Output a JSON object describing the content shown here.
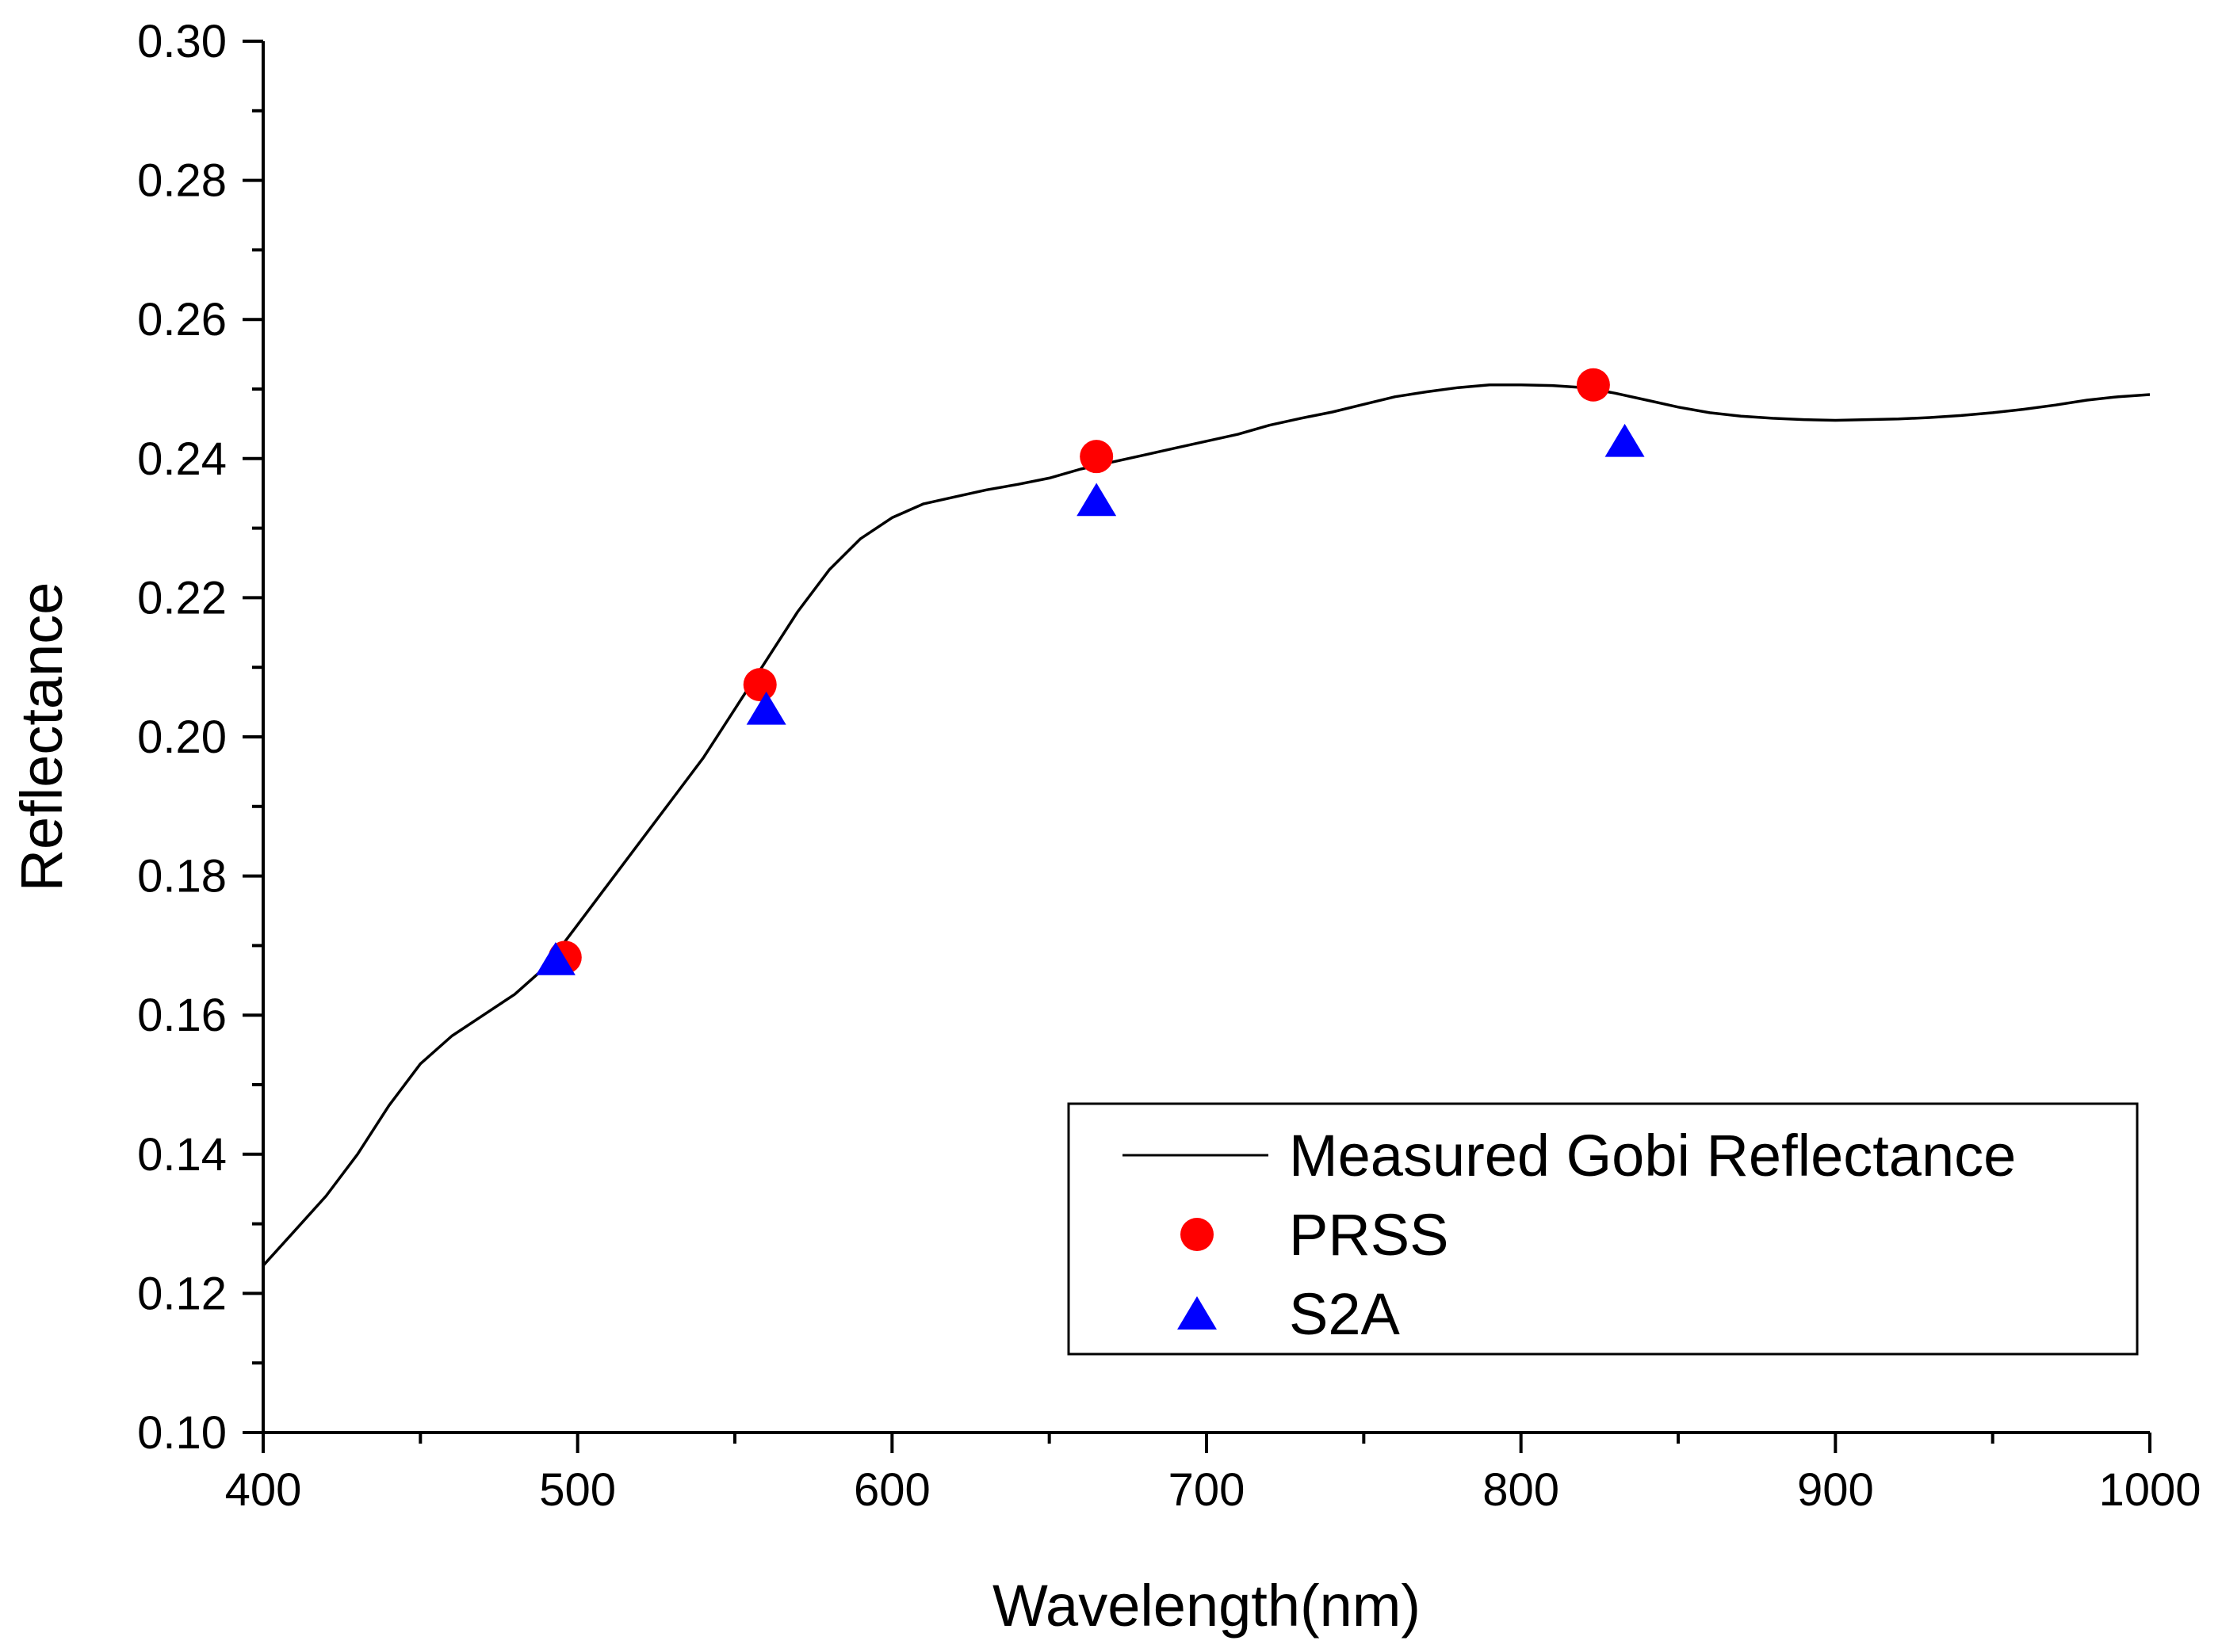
{
  "chart_data": {
    "type": "line",
    "title": "",
    "xlabel": "Wavelength(nm)",
    "ylabel": "Reflectance",
    "xlim": [
      400,
      1000
    ],
    "ylim": [
      0.1,
      0.3
    ],
    "x_major_ticks": [
      400,
      500,
      600,
      700,
      800,
      900,
      1000
    ],
    "x_tick_labels": [
      "400",
      "500",
      "600",
      "700",
      "800",
      "900",
      "1000"
    ],
    "y_major_ticks": [
      0.1,
      0.12,
      0.14,
      0.16,
      0.18,
      0.2,
      0.22,
      0.24,
      0.26,
      0.28,
      0.3
    ],
    "y_tick_labels": [
      "0.10",
      "0.12",
      "0.14",
      "0.16",
      "0.18",
      "0.20",
      "0.22",
      "0.24",
      "0.26",
      "0.28",
      "0.30"
    ],
    "grid": false,
    "legend_position": "lower-right",
    "series": [
      {
        "name": "Measured Gobi Reflectance",
        "kind": "line",
        "color": "#000000",
        "x": [
          400,
          410,
          420,
          430,
          440,
          450,
          460,
          470,
          480,
          490,
          500,
          510,
          520,
          530,
          540,
          550,
          560,
          570,
          580,
          590,
          600,
          610,
          620,
          630,
          640,
          650,
          660,
          670,
          680,
          690,
          700,
          710,
          720,
          730,
          740,
          750,
          760,
          770,
          780,
          790,
          800,
          810,
          820,
          830,
          840,
          850,
          860,
          870,
          880,
          890,
          900,
          910,
          920,
          930,
          940,
          950,
          960,
          970,
          980,
          990,
          1000
        ],
        "y": [
          0.124,
          0.129,
          0.134,
          0.14,
          0.147,
          0.153,
          0.157,
          0.16,
          0.163,
          0.167,
          0.173,
          0.179,
          0.185,
          0.191,
          0.197,
          0.204,
          0.211,
          0.218,
          0.224,
          0.2285,
          0.2315,
          0.2335,
          0.2345,
          0.2355,
          0.2363,
          0.2372,
          0.2385,
          0.2395,
          0.2405,
          0.2415,
          0.2425,
          0.2435,
          0.2448,
          0.2458,
          0.2467,
          0.2478,
          0.2489,
          0.2496,
          0.2502,
          0.2506,
          0.2506,
          0.2505,
          0.2502,
          0.2494,
          0.2484,
          0.2474,
          0.2466,
          0.2461,
          0.2458,
          0.2456,
          0.2455,
          0.2456,
          0.2457,
          0.2459,
          0.2462,
          0.2466,
          0.2471,
          0.2477,
          0.2484,
          0.2489,
          0.2492
        ]
      },
      {
        "name": "PRSS",
        "kind": "scatter",
        "marker": "circle",
        "color": "#ff0000",
        "x": [
          496,
          558,
          665,
          823
        ],
        "y": [
          0.1683,
          0.2075,
          0.2403,
          0.2506
        ]
      },
      {
        "name": "S2A",
        "kind": "scatter",
        "marker": "triangle",
        "color": "#0000ff",
        "x": [
          493,
          560,
          665,
          833
        ],
        "y": [
          0.168,
          0.204,
          0.234,
          0.2425
        ]
      }
    ]
  }
}
